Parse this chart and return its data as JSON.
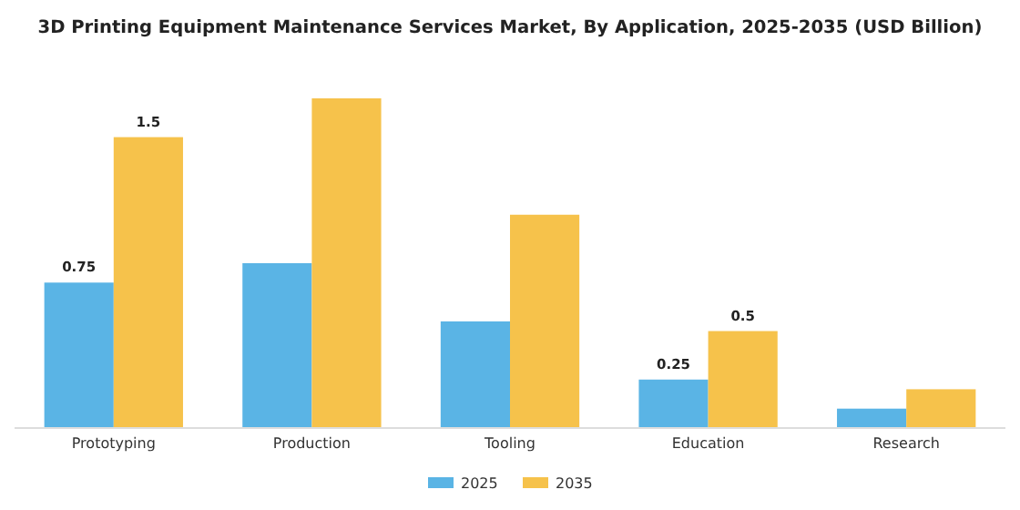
{
  "chart_data": {
    "type": "bar",
    "title": "3D Printing Equipment Maintenance Services Market, By Application, 2025-2035 (USD Billion)",
    "categories": [
      "Prototyping",
      "Production",
      "Tooling",
      "Education",
      "Research"
    ],
    "series": [
      {
        "name": "2025",
        "color": "#5ab4e5",
        "values": [
          0.75,
          0.85,
          0.55,
          0.25,
          0.1
        ],
        "value_labels": [
          "0.75",
          null,
          null,
          "0.25",
          null
        ]
      },
      {
        "name": "2035",
        "color": "#f6c24b",
        "values": [
          1.5,
          1.7,
          1.1,
          0.5,
          0.2
        ],
        "value_labels": [
          "1.5",
          null,
          null,
          "0.5",
          null
        ]
      }
    ],
    "legend": "bottom",
    "grid": false
  }
}
